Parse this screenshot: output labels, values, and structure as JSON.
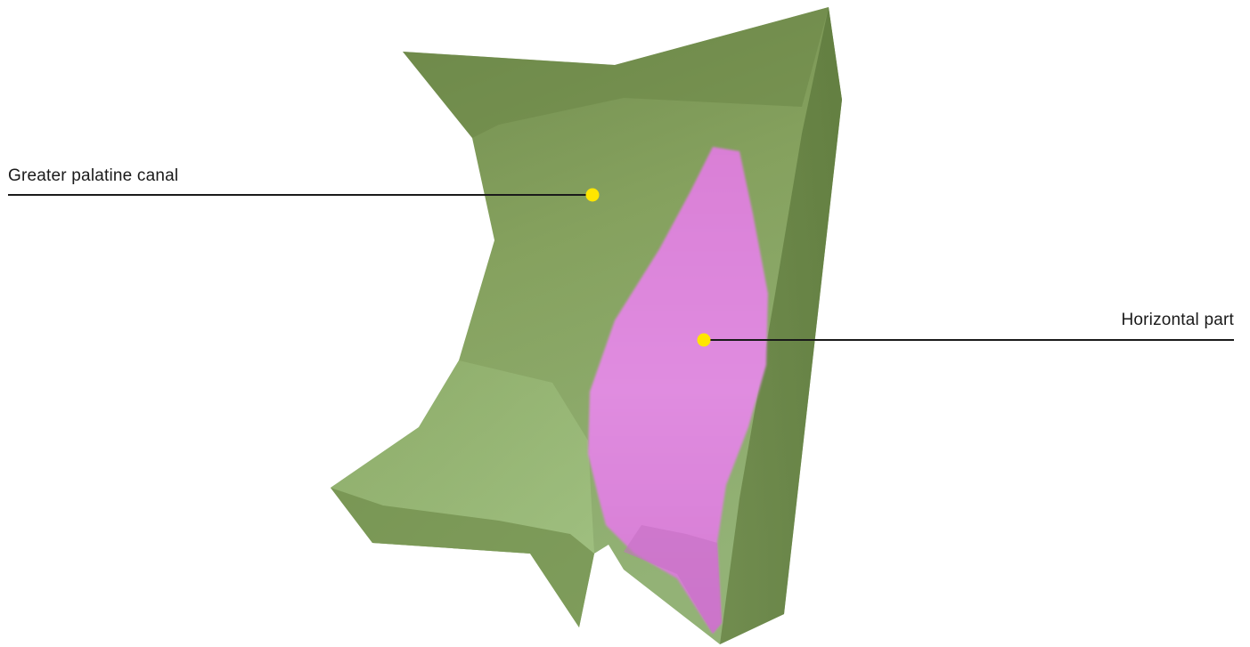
{
  "labels": {
    "greater_palatine_canal": "Greater palatine canal",
    "horizontal_part": "Horizontal part"
  },
  "colors": {
    "bone": "#7c9456",
    "bone_light": "#9fbf80",
    "bone_dark": "#5f7a3f",
    "highlight": "#dd88dd",
    "marker": "#ffe600",
    "leader_line": "#1a1a1a"
  }
}
